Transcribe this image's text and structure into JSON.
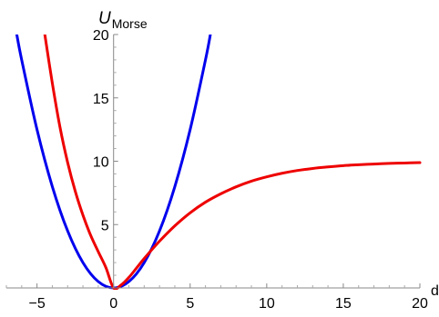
{
  "chart_data": {
    "type": "line",
    "title": "",
    "ylabel": {
      "main": "U",
      "sub": "Morse"
    },
    "xlabel": "d",
    "xlim": [
      -7,
      20
    ],
    "ylim": [
      0,
      20
    ],
    "x_ticks": [
      -5,
      0,
      5,
      10,
      15,
      20
    ],
    "x_tick_labels": [
      "−5",
      "0",
      "5",
      "10",
      "15",
      "20"
    ],
    "y_ticks": [
      5,
      10,
      15,
      20
    ],
    "y_tick_labels": [
      "5",
      "10",
      "15",
      "20"
    ],
    "grid": false,
    "series": [
      {
        "color": "#0000ee",
        "x": [
          -6.32,
          -6,
          -5,
          -4,
          -3,
          -2,
          -1,
          0,
          1,
          2,
          3,
          4,
          5,
          6,
          6.32
        ],
        "y": [
          20.0,
          18.0,
          12.5,
          8.0,
          4.5,
          2.0,
          0.5,
          0.0,
          0.5,
          2.0,
          4.5,
          8.0,
          12.5,
          18.0,
          20.0
        ]
      },
      {
        "color": "#ee0000",
        "x": [
          -4.49,
          -4,
          -3.5,
          -3,
          -2.5,
          -2,
          -1.5,
          -1,
          -0.5,
          0,
          0.5,
          1,
          1.5,
          2,
          3,
          4,
          5,
          6,
          7,
          8,
          9,
          10,
          11,
          12,
          13,
          14,
          15,
          16,
          17,
          18,
          19,
          20
        ],
        "y": [
          20.0,
          16.16,
          12.69,
          9.9,
          7.62,
          5.74,
          4.16,
          2.86,
          1.6,
          0.0,
          0.24,
          0.83,
          1.57,
          2.32,
          3.69,
          4.9,
          5.93,
          6.77,
          7.43,
          7.98,
          8.43,
          8.77,
          9.05,
          9.27,
          9.43,
          9.55,
          9.65,
          9.72,
          9.78,
          9.83,
          9.86,
          9.89
        ]
      }
    ]
  }
}
